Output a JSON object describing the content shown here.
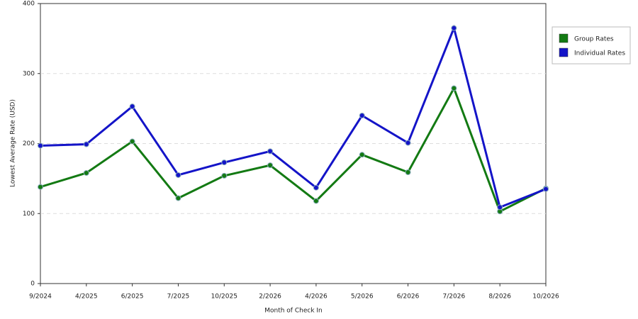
{
  "chart_data": {
    "type": "line",
    "x_label": "Month of Check In",
    "y_label": "Lowest Average Rate (USD)",
    "categories": [
      "9/2024",
      "4/2025",
      "6/2025",
      "7/2025",
      "10/2025",
      "2/2026",
      "4/2026",
      "5/2026",
      "6/2026",
      "7/2026",
      "8/2026",
      "10/2026"
    ],
    "series": [
      {
        "name": "Group Rates",
        "color": "#137a13",
        "values": [
          138,
          158,
          203,
          122,
          154,
          169,
          118,
          184,
          159,
          279,
          103,
          136
        ]
      },
      {
        "name": "Individual Rates",
        "color": "#1414c8",
        "values": [
          197,
          199,
          253,
          155,
          173,
          189,
          137,
          240,
          201,
          365,
          109,
          135
        ]
      }
    ],
    "ylim": [
      0,
      400
    ],
    "yticks": [
      0,
      100,
      200,
      300,
      400
    ],
    "grid": true,
    "legend": "right"
  }
}
